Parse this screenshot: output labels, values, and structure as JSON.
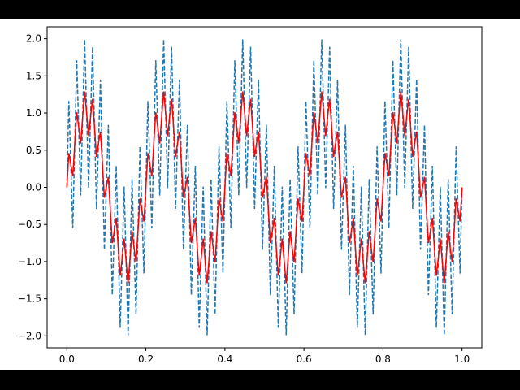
{
  "chart_data": {
    "type": "line",
    "x": [
      0,
      0.005,
      0.01,
      0.015,
      0.02,
      0.025,
      0.03,
      0.035,
      0.04,
      0.045,
      0.05,
      0.055,
      0.06,
      0.065,
      0.07,
      0.075,
      0.08,
      0.085,
      0.09,
      0.095,
      0.1,
      0.105,
      0.11,
      0.115,
      0.12,
      0.125,
      0.13,
      0.135,
      0.14,
      0.145,
      0.15,
      0.155,
      0.16,
      0.165,
      0.17,
      0.175,
      0.18,
      0.185,
      0.19,
      0.195,
      0.2,
      0.205,
      0.21,
      0.215,
      0.22,
      0.225,
      0.23,
      0.235,
      0.24,
      0.245,
      0.25,
      0.255,
      0.26,
      0.265,
      0.27,
      0.275,
      0.28,
      0.285,
      0.29,
      0.295,
      0.3,
      0.305,
      0.31,
      0.315,
      0.32,
      0.325,
      0.33,
      0.335,
      0.34,
      0.345,
      0.35,
      0.355,
      0.36,
      0.365,
      0.37,
      0.375,
      0.38,
      0.385,
      0.39,
      0.395,
      0.4,
      0.405,
      0.41,
      0.415,
      0.42,
      0.425,
      0.43,
      0.435,
      0.44,
      0.445,
      0.45,
      0.455,
      0.46,
      0.465,
      0.47,
      0.475,
      0.48,
      0.485,
      0.49,
      0.495,
      0.5,
      0.505,
      0.51,
      0.515,
      0.52,
      0.525,
      0.53,
      0.535,
      0.54,
      0.545,
      0.55,
      0.555,
      0.56,
      0.565,
      0.57,
      0.575,
      0.58,
      0.585,
      0.59,
      0.595,
      0.6,
      0.605,
      0.61,
      0.615,
      0.62,
      0.625,
      0.63,
      0.635,
      0.64,
      0.645,
      0.65,
      0.655,
      0.66,
      0.665,
      0.67,
      0.675,
      0.68,
      0.685,
      0.69,
      0.695,
      0.7,
      0.705,
      0.71,
      0.715,
      0.72,
      0.725,
      0.73,
      0.735,
      0.74,
      0.745,
      0.75,
      0.755,
      0.76,
      0.765,
      0.77,
      0.775,
      0.78,
      0.785,
      0.79,
      0.795,
      0.8,
      0.805,
      0.81,
      0.815,
      0.82,
      0.825,
      0.83,
      0.835,
      0.84,
      0.845,
      0.85,
      0.855,
      0.86,
      0.865,
      0.87,
      0.875,
      0.88,
      0.885,
      0.89,
      0.895,
      0.9,
      0.905,
      0.91,
      0.915,
      0.92,
      0.925,
      0.93,
      0.935,
      0.94,
      0.945,
      0.95,
      0.955,
      0.96,
      0.965,
      0.97,
      0.975,
      0.98,
      0.985,
      0.99,
      0.995,
      1
    ],
    "series": [
      {
        "color": "#1f77b4",
        "dashed": true,
        "values": [
          0,
          1.16,
          0.31,
          -0.55,
          0.59,
          1.71,
          0.81,
          -0.11,
          0.95,
          1.99,
          1,
          -0.01,
          0.95,
          1.89,
          0.81,
          -0.29,
          0.59,
          1.45,
          0.31,
          -0.84,
          0,
          0.84,
          -0.31,
          -1.45,
          -0.59,
          0.29,
          -0.81,
          -1.89,
          -0.95,
          0.01,
          -1,
          -1.99,
          -0.95,
          0.11,
          -0.81,
          -1.71,
          -0.59,
          0.55,
          -0.31,
          -1.16,
          0,
          1.16,
          0.31,
          -0.55,
          0.59,
          1.71,
          0.81,
          -0.11,
          0.95,
          1.99,
          1,
          -0.01,
          0.95,
          1.89,
          0.81,
          -0.29,
          0.59,
          1.45,
          0.31,
          -0.84,
          0,
          0.84,
          -0.31,
          -1.45,
          -0.59,
          0.29,
          -0.81,
          -1.89,
          -0.95,
          0.01,
          -1,
          -1.99,
          -0.95,
          0.11,
          -0.81,
          -1.71,
          -0.59,
          0.55,
          -0.31,
          -1.16,
          0,
          1.16,
          0.31,
          -0.55,
          0.59,
          1.71,
          0.81,
          -0.11,
          0.95,
          1.99,
          1,
          -0.01,
          0.95,
          1.89,
          0.81,
          -0.29,
          0.59,
          1.45,
          0.31,
          -0.84,
          0,
          0.84,
          -0.31,
          -1.45,
          -0.59,
          0.29,
          -0.81,
          -1.89,
          -0.95,
          0.01,
          -1,
          -1.99,
          -0.95,
          0.11,
          -0.81,
          -1.71,
          -0.59,
          0.55,
          -0.31,
          -1.16,
          0,
          1.16,
          0.31,
          -0.55,
          0.59,
          1.71,
          0.81,
          -0.11,
          0.95,
          1.99,
          1,
          -0.01,
          0.95,
          1.89,
          0.81,
          -0.29,
          0.59,
          1.45,
          0.31,
          -0.84,
          0,
          0.84,
          -0.31,
          -1.45,
          -0.59,
          0.29,
          -0.81,
          -1.89,
          -0.95,
          0.01,
          -1,
          -1.99,
          -0.95,
          0.11,
          -0.81,
          -1.71,
          -0.59,
          0.55,
          -0.31,
          -1.16,
          0,
          1.16,
          0.31,
          -0.55,
          0.59,
          1.71,
          0.81,
          -0.11,
          0.95,
          1.99,
          1,
          -0.01,
          0.95,
          1.89,
          0.81,
          -0.29,
          0.59,
          1.45,
          0.31,
          -0.84,
          0,
          0.84,
          -0.31,
          -1.45,
          -0.59,
          0.29,
          -0.81,
          -1.89,
          -0.95,
          0.01,
          -1,
          -1.99,
          -0.95,
          0.11,
          -0.81,
          -1.71,
          -0.59,
          0.55,
          -0.31,
          -1.16,
          0
        ]
      },
      {
        "color": "#ff0000",
        "dashed": false,
        "values": [
          0,
          0.46,
          0.31,
          0.15,
          0.59,
          1.01,
          0.81,
          0.59,
          0.95,
          1.29,
          1,
          0.69,
          0.95,
          1.19,
          0.81,
          0.41,
          0.59,
          0.75,
          0.31,
          -0.14,
          0,
          0.14,
          -0.31,
          -0.75,
          -0.59,
          -0.41,
          -0.81,
          -1.19,
          -0.95,
          -0.69,
          -1,
          -1.29,
          -0.95,
          -0.59,
          -0.81,
          -1.01,
          -0.59,
          -0.15,
          -0.31,
          -0.46,
          0,
          0.46,
          0.31,
          0.15,
          0.59,
          1.01,
          0.81,
          0.59,
          0.95,
          1.29,
          1,
          0.69,
          0.95,
          1.19,
          0.81,
          0.41,
          0.59,
          0.75,
          0.31,
          -0.14,
          0,
          0.14,
          -0.31,
          -0.75,
          -0.59,
          -0.41,
          -0.81,
          -1.19,
          -0.95,
          -0.69,
          -1,
          -1.29,
          -0.95,
          -0.59,
          -0.81,
          -1.01,
          -0.59,
          -0.15,
          -0.31,
          -0.46,
          0,
          0.46,
          0.31,
          0.15,
          0.59,
          1.01,
          0.81,
          0.59,
          0.95,
          1.29,
          1,
          0.69,
          0.95,
          1.19,
          0.81,
          0.41,
          0.59,
          0.75,
          0.31,
          -0.14,
          0,
          0.14,
          -0.31,
          -0.75,
          -0.59,
          -0.41,
          -0.81,
          -1.19,
          -0.95,
          -0.69,
          -1,
          -1.29,
          -0.95,
          -0.59,
          -0.81,
          -1.01,
          -0.59,
          -0.15,
          -0.31,
          -0.46,
          0,
          0.46,
          0.31,
          0.15,
          0.59,
          1.01,
          0.81,
          0.59,
          0.95,
          1.29,
          1,
          0.69,
          0.95,
          1.19,
          0.81,
          0.41,
          0.59,
          0.75,
          0.31,
          -0.14,
          0,
          0.14,
          -0.31,
          -0.75,
          -0.59,
          -0.41,
          -0.81,
          -1.19,
          -0.95,
          -0.69,
          -1,
          -1.29,
          -0.95,
          -0.59,
          -0.81,
          -1.01,
          -0.59,
          -0.15,
          -0.31,
          -0.46,
          0,
          0.46,
          0.31,
          0.15,
          0.59,
          1.01,
          0.81,
          0.59,
          0.95,
          1.29,
          1,
          0.69,
          0.95,
          1.19,
          0.81,
          0.41,
          0.59,
          0.75,
          0.31,
          -0.14,
          0,
          0.14,
          -0.31,
          -0.75,
          -0.59,
          -0.41,
          -0.81,
          -1.19,
          -0.95,
          -0.69,
          -1,
          -1.29,
          -0.95,
          -0.59,
          -0.81,
          -1.01,
          -0.59,
          -0.15,
          -0.31,
          -0.46,
          0
        ]
      }
    ],
    "xlim": [
      -0.05,
      1.05
    ],
    "ylim": [
      -2.16,
      2.16
    ],
    "xticks": [
      {
        "value": 0,
        "label": "0.0"
      },
      0.2,
      0.4,
      0.6,
      0.8,
      {
        "value": 1,
        "label": "1.0"
      }
    ],
    "yticks": [
      {
        "value": -2,
        "label": "−2.0"
      },
      {
        "value": -1.5,
        "label": "−1.5"
      },
      {
        "value": -1,
        "label": "−1.0"
      },
      {
        "value": -0.5,
        "label": "−0.5"
      },
      {
        "value": 0,
        "label": "0.0"
      },
      0.5,
      {
        "value": 1,
        "label": "1.0"
      },
      1.5,
      {
        "value": 2,
        "label": "2.0"
      }
    ],
    "grid": false
  }
}
